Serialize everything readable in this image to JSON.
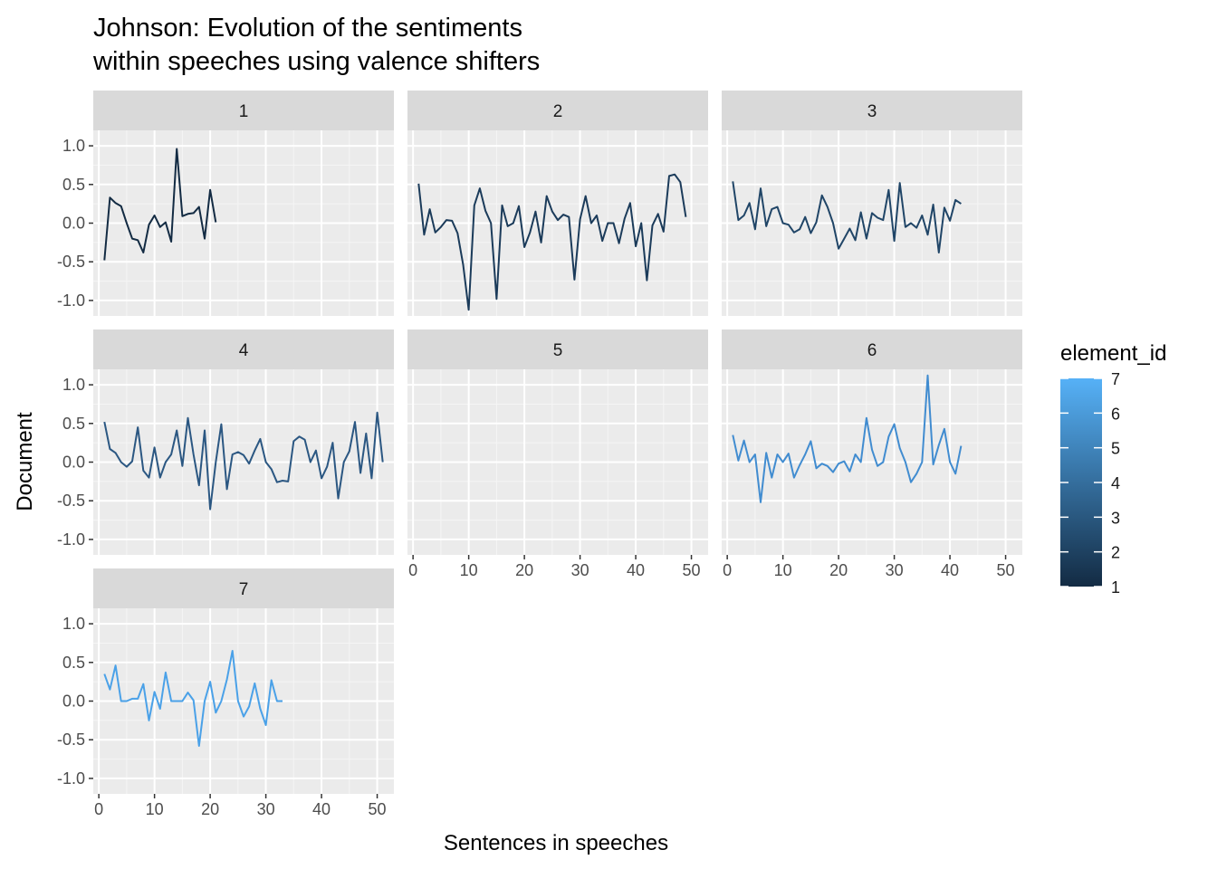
{
  "chart_data": {
    "type": "line",
    "title_lines": [
      "Johnson: Evolution of the sentiments",
      "within speeches using valence shifters"
    ],
    "xlabel": "Sentences in speeches",
    "ylabel": "Document",
    "xlim": [
      -1,
      53
    ],
    "ylim": [
      -1.2,
      1.2
    ],
    "x_ticks": [
      0,
      10,
      20,
      30,
      40,
      50
    ],
    "y_ticks": [
      -1.0,
      -0.5,
      0.0,
      0.5,
      1.0
    ],
    "y_tick_labels": [
      "-1.0",
      "-0.5",
      "0.0",
      "0.5",
      "1.0"
    ],
    "x_tick_labels": [
      "0",
      "10",
      "20",
      "30",
      "40",
      "50"
    ],
    "grid": true,
    "legend": {
      "title": "element_id",
      "placement": "right",
      "labels": [
        "7",
        "6",
        "5",
        "4",
        "3",
        "2",
        "1"
      ],
      "color_low": "#132B43",
      "color_high": "#56B1F7"
    },
    "panels": [
      {
        "label": "1",
        "color": "#132B43",
        "values": [
          -0.48,
          0.33,
          0.26,
          0.22,
          0.0,
          -0.2,
          -0.22,
          -0.38,
          -0.02,
          0.1,
          -0.05,
          0.01,
          -0.24,
          0.96,
          0.09,
          0.12,
          0.13,
          0.21,
          -0.2,
          0.43,
          0.01
        ]
      },
      {
        "label": "2",
        "color": "#1b3b5a",
        "values": [
          0.51,
          -0.15,
          0.18,
          -0.12,
          -0.05,
          0.04,
          0.03,
          -0.13,
          -0.54,
          -1.12,
          0.23,
          0.45,
          0.16,
          0.0,
          -0.98,
          0.23,
          -0.04,
          0.0,
          0.22,
          -0.31,
          -0.12,
          0.15,
          -0.25,
          0.35,
          0.15,
          0.04,
          0.11,
          0.08,
          -0.73,
          0.05,
          0.35,
          0.0,
          0.1,
          -0.23,
          0.0,
          0.0,
          -0.26,
          0.06,
          0.26,
          -0.3,
          0.0,
          -0.74,
          -0.03,
          0.12,
          -0.11,
          0.61,
          0.63,
          0.53,
          0.08
        ]
      },
      {
        "label": "3",
        "color": "#204567",
        "values": [
          0.54,
          0.04,
          0.1,
          0.26,
          -0.08,
          0.45,
          -0.04,
          0.18,
          0.21,
          0.0,
          -0.02,
          -0.12,
          -0.08,
          0.08,
          -0.13,
          0.01,
          0.36,
          0.21,
          0.0,
          -0.33,
          -0.2,
          -0.07,
          -0.22,
          0.14,
          -0.2,
          0.13,
          0.07,
          0.04,
          0.43,
          -0.23,
          0.52,
          -0.05,
          0.0,
          -0.06,
          0.1,
          -0.15,
          0.24,
          -0.38,
          0.2,
          0.03,
          0.3,
          0.25
        ]
      },
      {
        "label": "4",
        "color": "#2b5782",
        "values": [
          0.52,
          0.17,
          0.12,
          0.0,
          -0.06,
          0.01,
          0.45,
          -0.11,
          -0.2,
          0.19,
          -0.2,
          0.0,
          0.1,
          0.41,
          -0.05,
          0.57,
          0.1,
          -0.3,
          0.41,
          -0.61,
          0.0,
          0.49,
          -0.35,
          0.1,
          0.13,
          0.09,
          -0.02,
          0.15,
          0.3,
          0.0,
          -0.09,
          -0.26,
          -0.24,
          -0.25,
          0.27,
          0.33,
          0.29,
          0.0,
          0.15,
          -0.21,
          -0.06,
          0.25,
          -0.47,
          0.0,
          0.14,
          0.52,
          -0.14,
          0.37,
          -0.21,
          0.64,
          0.0
        ]
      },
      {
        "label": "5",
        "color": "#3570a6",
        "values": []
      },
      {
        "label": "6",
        "color": "#418cd0",
        "values": [
          0.35,
          0.02,
          0.28,
          0.0,
          0.1,
          -0.52,
          0.12,
          -0.2,
          0.1,
          0.0,
          0.11,
          -0.2,
          -0.04,
          0.1,
          0.27,
          -0.08,
          -0.02,
          -0.05,
          -0.13,
          -0.02,
          0.01,
          -0.12,
          0.1,
          0.0,
          0.57,
          0.16,
          -0.05,
          0.0,
          0.33,
          0.49,
          0.18,
          0.0,
          -0.26,
          -0.15,
          0.0,
          1.12,
          -0.03,
          0.22,
          0.43,
          0.0,
          -0.15,
          0.21
        ]
      },
      {
        "label": "7",
        "color": "#4aa1e8",
        "values": [
          0.35,
          0.15,
          0.46,
          0.0,
          0.0,
          0.03,
          0.03,
          0.22,
          -0.25,
          0.12,
          -0.1,
          0.37,
          0.0,
          0.0,
          0.0,
          0.11,
          0.01,
          -0.58,
          0.0,
          0.25,
          -0.15,
          0.0,
          0.28,
          0.65,
          0.0,
          -0.2,
          -0.07,
          0.23,
          -0.1,
          -0.31,
          0.27,
          0.0,
          0.0
        ]
      }
    ]
  }
}
